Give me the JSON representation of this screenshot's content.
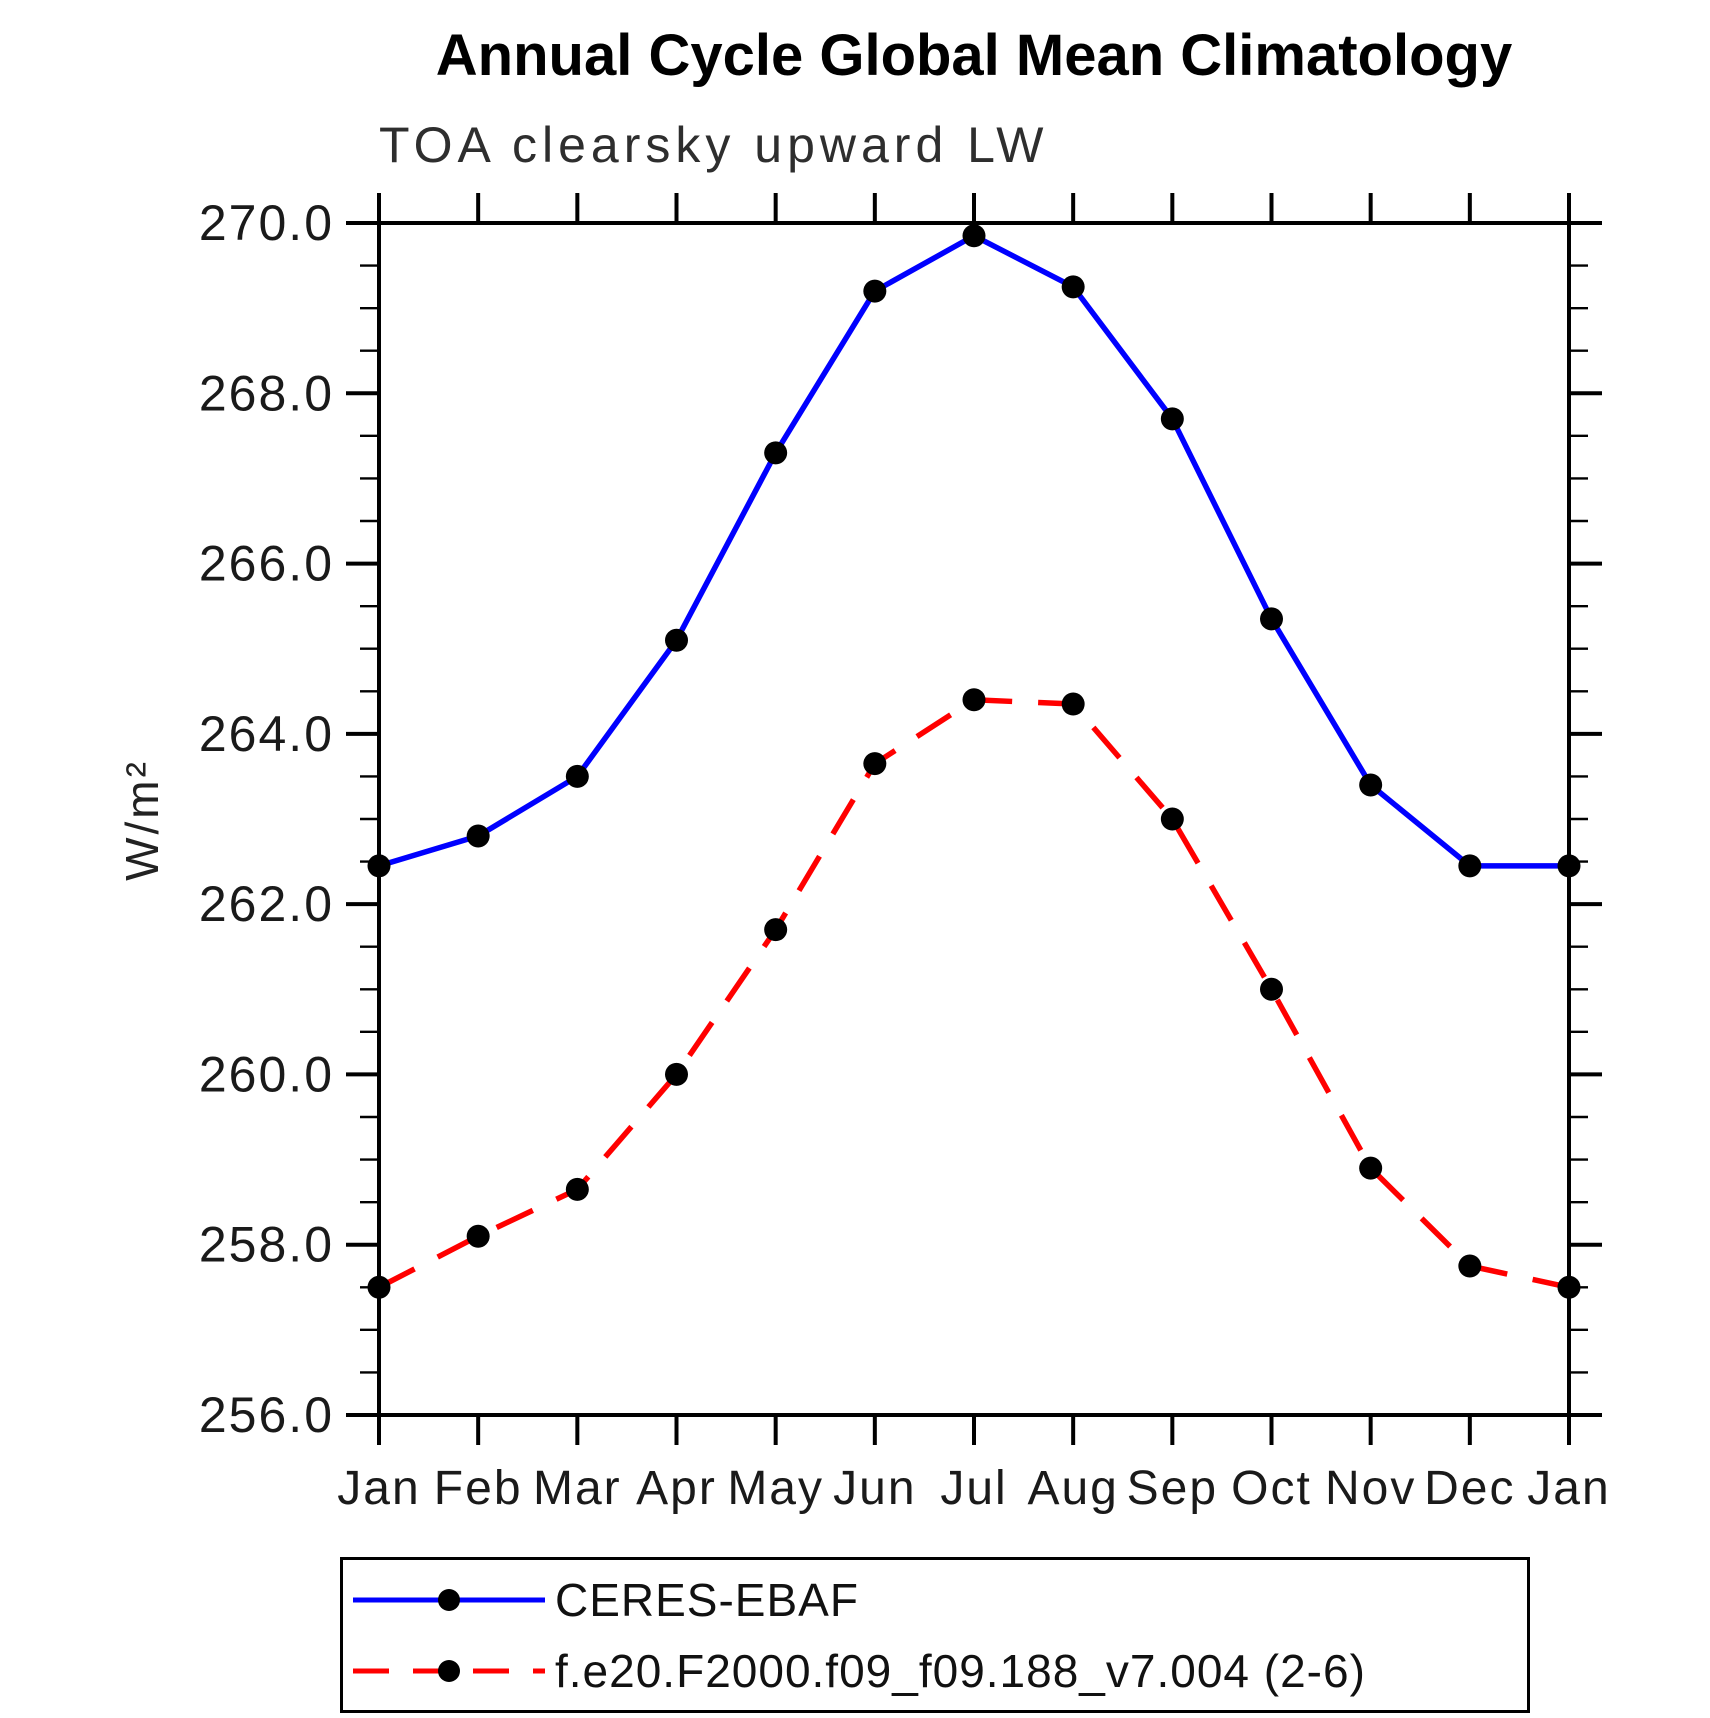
{
  "chart_data": {
    "type": "line",
    "title": "Annual Cycle Global Mean Climatology",
    "subtitle": "TOA clearsky upward LW",
    "ylabel": "W/m²",
    "x_categories": [
      "Jan",
      "Feb",
      "Mar",
      "Apr",
      "May",
      "Jun",
      "Jul",
      "Aug",
      "Sep",
      "Oct",
      "Nov",
      "Dec",
      "Jan"
    ],
    "ylim": [
      256.0,
      270.0
    ],
    "y_major_step": 2.0,
    "y_minor_step": 0.5,
    "y_tick_values": [
      270,
      268,
      266,
      264,
      262,
      260,
      258,
      256
    ],
    "y_tick_labels": [
      "270.0",
      "268.0",
      "266.0",
      "264.0",
      "262.0",
      "260.0",
      "258.0",
      "256.0"
    ],
    "grid": false,
    "legend_position": "bottom",
    "axis_color": "#000000",
    "series": [
      {
        "name": "CERES-EBAF",
        "color": "#0000ff",
        "line_style": "solid",
        "marker": "circle",
        "marker_color": "#000000",
        "values": [
          262.45,
          262.8,
          263.5,
          265.1,
          267.3,
          269.2,
          269.85,
          269.25,
          267.7,
          265.35,
          263.4,
          262.45,
          262.45
        ]
      },
      {
        "name": "f.e20.F2000.f09_f09.188_v7.004 (2-6)",
        "color": "#ff0000",
        "line_style": "dashed",
        "marker": "circle",
        "marker_color": "#000000",
        "values": [
          257.5,
          258.1,
          258.65,
          260.0,
          261.7,
          263.65,
          264.4,
          264.35,
          263.0,
          261.0,
          258.9,
          257.75,
          257.5
        ]
      }
    ]
  }
}
